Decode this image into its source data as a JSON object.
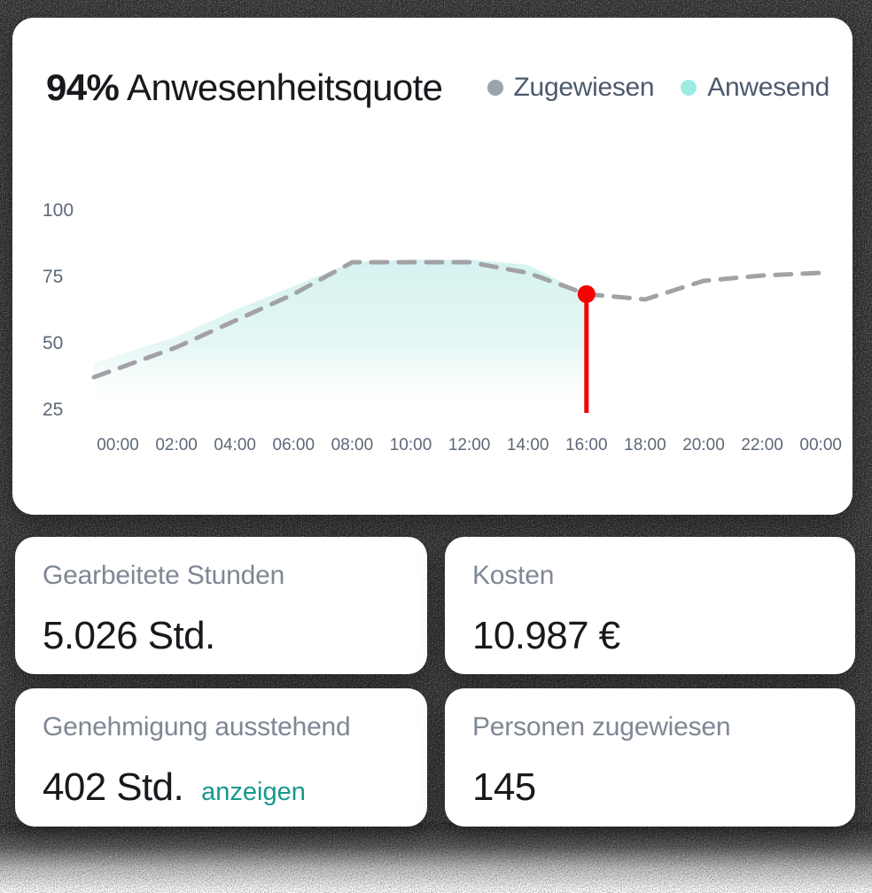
{
  "attendance_card": {
    "title_value": "94%",
    "title_label": "Anwesenheitsquote",
    "legend": [
      {
        "label": "Zugewiesen",
        "color": "#9ca3af"
      },
      {
        "label": "Anwesend",
        "color": "#9debe3"
      }
    ]
  },
  "chart_data": {
    "type": "area",
    "title": "94% Anwesenheitsquote",
    "x_ticks": [
      "00:00",
      "02:00",
      "04:00",
      "06:00",
      "08:00",
      "10:00",
      "12:00",
      "14:00",
      "16:00",
      "18:00",
      "20:00",
      "22:00",
      "00:00"
    ],
    "xlabel": "",
    "ylabel": "",
    "y_ticks": [
      100,
      75,
      50,
      25
    ],
    "ylim": [
      25,
      100
    ],
    "grid": false,
    "legend_position": "top-right",
    "series": [
      {
        "name": "Zugewiesen",
        "kind": "dashed-line",
        "color": "#a2a2a6",
        "x": [
          0,
          2,
          4,
          6,
          8,
          10,
          12,
          14,
          16,
          18,
          20,
          22,
          24
        ],
        "values": [
          40,
          48,
          58,
          68,
          80,
          80,
          80,
          76,
          68,
          66,
          73,
          75,
          76
        ]
      },
      {
        "name": "Anwesend",
        "kind": "area",
        "color": "#d5f2ef",
        "x": [
          0,
          2,
          4,
          6,
          8,
          10,
          12,
          14,
          16
        ],
        "values": [
          45,
          52,
          62,
          71,
          80,
          81,
          81,
          79,
          68
        ]
      }
    ],
    "marker": {
      "x": 16,
      "value": 68,
      "time": "16:00",
      "color": "#f60000"
    },
    "area_gradient": [
      [
        "0%",
        "#d5f2ef",
        1
      ],
      [
        "55%",
        "#dff5f2",
        0.85
      ],
      [
        "100%",
        "#ffffff",
        0
      ]
    ]
  },
  "stats": [
    {
      "label": "Gearbeitete Stunden",
      "value": "5.026 Std."
    },
    {
      "label": "Kosten",
      "value": "10.987 €"
    },
    {
      "label": "Genehmigung ausstehend",
      "value": "402 Std.",
      "link": "anzeigen"
    },
    {
      "label": "Personen zugewiesen",
      "value": "145"
    }
  ],
  "colors": {
    "background": "#282828",
    "card": "#ffffff",
    "text_dark": "#17191d",
    "label_gray": "#7e8794",
    "axis_gray": "#5c6878",
    "legend_text": "#4c5a6c",
    "link_teal": "#16998c",
    "marker_red": "#f60000",
    "dashed_gray": "#a2a2a6",
    "area_mint": "#d5f2ef"
  }
}
